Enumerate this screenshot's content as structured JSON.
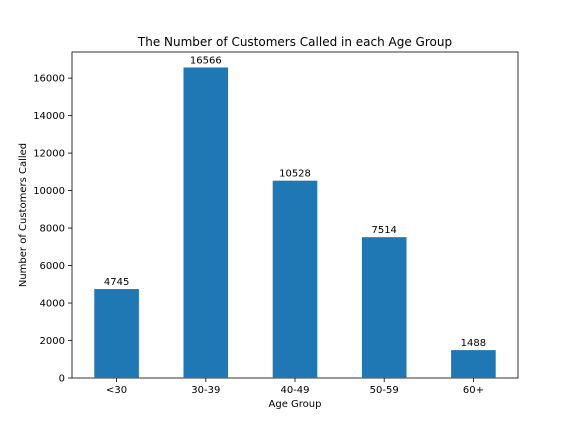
{
  "chart_data": {
    "type": "bar",
    "title": "The Number of Customers Called in each Age Group",
    "xlabel": "Age Group",
    "ylabel": "Number of Customers Called",
    "categories": [
      "<30",
      "30-39",
      "40-49",
      "50-59",
      "60+"
    ],
    "values": [
      4745,
      16566,
      10528,
      7514,
      1488
    ],
    "data_labels": [
      "4745",
      "16566",
      "10528",
      "7514",
      "1488"
    ],
    "ylim": [
      0,
      17394
    ],
    "yticks": [
      0,
      2000,
      4000,
      6000,
      8000,
      10000,
      12000,
      14000,
      16000
    ],
    "ytick_labels": [
      "0",
      "2000",
      "4000",
      "6000",
      "8000",
      "10000",
      "12000",
      "14000",
      "16000"
    ],
    "grid": false,
    "legend": "none",
    "bar_color": "#1f77b4"
  }
}
